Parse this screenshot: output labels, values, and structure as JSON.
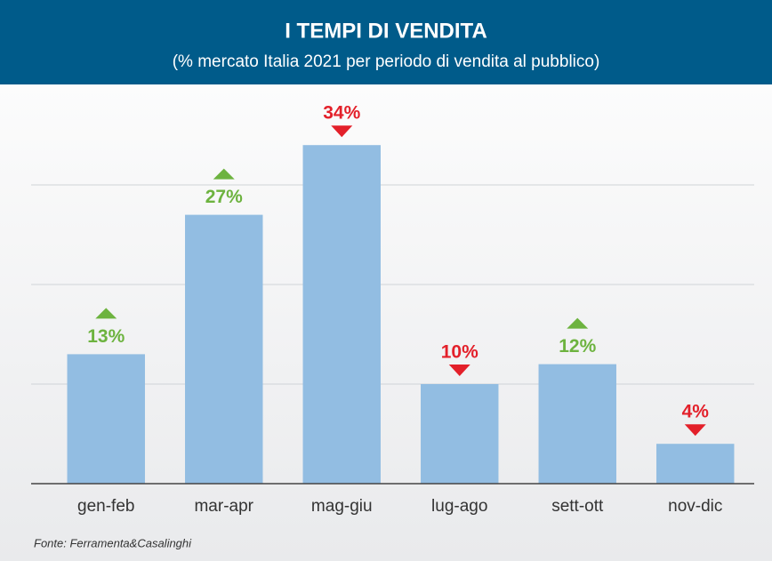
{
  "chart_data": {
    "type": "bar",
    "title": "I TEMPI DI VENDITA",
    "subtitle": "(% mercato Italia 2021 per periodo di vendita al pubblico)",
    "categories": [
      "gen-feb",
      "mar-apr",
      "mag-giu",
      "lug-ago",
      "sett-ott",
      "nov-dic"
    ],
    "values": [
      13,
      27,
      34,
      10,
      12,
      4
    ],
    "value_labels": [
      "13%",
      "27%",
      "34%",
      "10%",
      "12%",
      "4%"
    ],
    "trend": [
      "up",
      "up",
      "down",
      "down",
      "up",
      "down"
    ],
    "trend_colors": {
      "up": "#6db33f",
      "down": "#e3202a"
    },
    "color": "#92bde2",
    "ylim": [
      0,
      40
    ],
    "yticks": [
      10,
      20,
      30
    ],
    "grid": true,
    "source": "Fonte: Ferramenta&Casalinghi"
  }
}
